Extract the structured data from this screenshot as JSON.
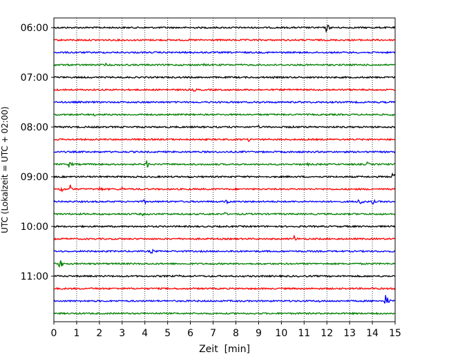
{
  "chart_data": {
    "type": "line",
    "title": "",
    "xlabel": "Zeit  [min]",
    "ylabel": "UTC (Lokalzeit = UTC + 02:00)",
    "xlim": [
      0,
      15
    ],
    "x_ticks": [
      "0",
      "1",
      "2",
      "3",
      "4",
      "5",
      "6",
      "7",
      "8",
      "9",
      "10",
      "11",
      "12",
      "13",
      "14",
      "15"
    ],
    "y_ticks": [
      "06:00",
      "07:00",
      "08:00",
      "09:00",
      "10:00",
      "11:00"
    ],
    "grid": "vertical dotted at each minute",
    "trace_colors": [
      "#000000",
      "#ff0000",
      "#0000ff",
      "#008000"
    ],
    "series": [
      {
        "start": "06:00",
        "color": "#000000",
        "events": [
          [
            12.0,
            4
          ],
          [
            12.4,
            1.5
          ]
        ]
      },
      {
        "start": "06:15",
        "color": "#ff0000",
        "events": []
      },
      {
        "start": "06:30",
        "color": "#0000ff",
        "events": [
          [
            0.9,
            1.2
          ]
        ]
      },
      {
        "start": "06:45",
        "color": "#008000",
        "events": [
          [
            2.3,
            1.5
          ],
          [
            6.6,
            1.2
          ]
        ]
      },
      {
        "start": "07:00",
        "color": "#000000",
        "events": [
          [
            9.6,
            1.5
          ]
        ]
      },
      {
        "start": "07:15",
        "color": "#ff0000",
        "events": [
          [
            6.2,
            1.5
          ]
        ]
      },
      {
        "start": "07:30",
        "color": "#0000ff",
        "events": [
          [
            9.1,
            1.5
          ],
          [
            10.8,
            1.2
          ]
        ]
      },
      {
        "start": "07:45",
        "color": "#008000",
        "events": [
          [
            1.8,
            1.2
          ],
          [
            14.9,
            1.5
          ]
        ]
      },
      {
        "start": "08:00",
        "color": "#000000",
        "events": [
          [
            9.0,
            1.5
          ],
          [
            10.5,
            1.2
          ]
        ]
      },
      {
        "start": "08:15",
        "color": "#ff0000",
        "events": [
          [
            8.6,
            1.8
          ]
        ]
      },
      {
        "start": "08:30",
        "color": "#0000ff",
        "events": []
      },
      {
        "start": "08:45",
        "color": "#008000",
        "events": [
          [
            0.7,
            3
          ],
          [
            4.1,
            3.5
          ],
          [
            11.2,
            1.2
          ],
          [
            13.8,
            2
          ]
        ]
      },
      {
        "start": "09:00",
        "color": "#000000",
        "events": [
          [
            6.0,
            1.2
          ],
          [
            14.9,
            4
          ]
        ]
      },
      {
        "start": "09:15",
        "color": "#ff0000",
        "events": [
          [
            0.3,
            3.5
          ],
          [
            0.7,
            5
          ],
          [
            2.0,
            3
          ],
          [
            3.0,
            2
          ]
        ]
      },
      {
        "start": "09:30",
        "color": "#0000ff",
        "events": [
          [
            4.0,
            2
          ],
          [
            7.6,
            2.5
          ],
          [
            13.4,
            6
          ],
          [
            14.0,
            3
          ]
        ]
      },
      {
        "start": "09:45",
        "color": "#008000",
        "events": [
          [
            3.9,
            1.5
          ],
          [
            7.5,
            2
          ]
        ]
      },
      {
        "start": "10:00",
        "color": "#000000",
        "events": [
          [
            5.7,
            1.2
          ]
        ]
      },
      {
        "start": "10:15",
        "color": "#ff0000",
        "events": [
          [
            10.6,
            3
          ]
        ]
      },
      {
        "start": "10:30",
        "color": "#0000ff",
        "events": [
          [
            4.3,
            2.5
          ],
          [
            7.8,
            1.5
          ]
        ]
      },
      {
        "start": "10:45",
        "color": "#008000",
        "events": [
          [
            0.25,
            5
          ]
        ]
      },
      {
        "start": "11:00",
        "color": "#000000",
        "events": [
          [
            5.5,
            1.2
          ],
          [
            11.0,
            1.2
          ]
        ]
      },
      {
        "start": "11:15",
        "color": "#ff0000",
        "events": [
          [
            14.0,
            1.5
          ]
        ]
      },
      {
        "start": "11:30",
        "color": "#0000ff",
        "events": [
          [
            11.7,
            1.5
          ],
          [
            14.6,
            6
          ]
        ]
      },
      {
        "start": "11:45",
        "color": "#008000",
        "events": [
          [
            14.2,
            1.5
          ]
        ]
      }
    ]
  }
}
